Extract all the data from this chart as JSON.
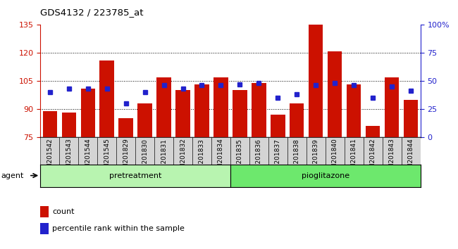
{
  "title": "GDS4132 / 223785_at",
  "samples": [
    "GSM201542",
    "GSM201543",
    "GSM201544",
    "GSM201545",
    "GSM201829",
    "GSM201830",
    "GSM201831",
    "GSM201832",
    "GSM201833",
    "GSM201834",
    "GSM201835",
    "GSM201836",
    "GSM201837",
    "GSM201838",
    "GSM201839",
    "GSM201840",
    "GSM201841",
    "GSM201842",
    "GSM201843",
    "GSM201844"
  ],
  "counts": [
    89,
    88,
    101,
    116,
    85,
    93,
    107,
    100,
    103,
    107,
    100,
    104,
    87,
    93,
    135,
    121,
    103,
    81,
    107,
    95
  ],
  "percentiles": [
    40,
    43,
    43,
    43,
    30,
    40,
    46,
    43,
    46,
    46,
    47,
    48,
    35,
    38,
    46,
    48,
    46,
    35,
    45,
    41
  ],
  "pretreatment_count": 10,
  "pretreatment_label": "pretreatment",
  "pioglitazone_label": "pioglitazone",
  "agent_label": "agent",
  "ylim_left": [
    75,
    135
  ],
  "ylim_right": [
    0,
    100
  ],
  "yticks_left": [
    75,
    90,
    105,
    120,
    135
  ],
  "yticks_right": [
    0,
    25,
    50,
    75,
    100
  ],
  "ytick_right_labels": [
    "0",
    "25",
    "50",
    "75",
    "100%"
  ],
  "bar_color": "#cc1100",
  "square_color": "#2222cc",
  "bar_bottom": 75,
  "pretreat_bg": "#b8f4b0",
  "pioglit_bg": "#6de86d",
  "tick_bg": "#d4d4d4",
  "legend_count_label": "count",
  "legend_pct_label": "percentile rank within the sample",
  "grid_lines": [
    90,
    105,
    120
  ]
}
